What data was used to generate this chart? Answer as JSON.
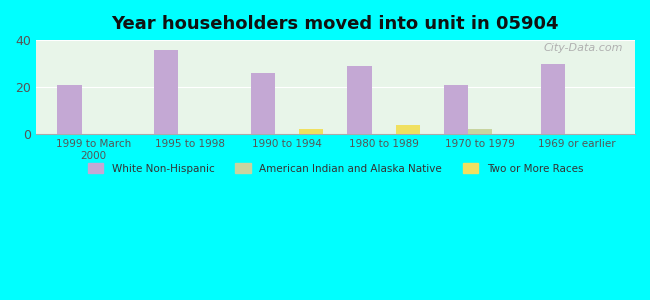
{
  "title": "Year householders moved into unit in 05904",
  "background_color": "#00FFFF",
  "plot_bg_top": "#e8f5e9",
  "plot_bg_bottom": "#f0f9f0",
  "categories": [
    "1999 to March\n2000",
    "1995 to 1998",
    "1990 to 1994",
    "1980 to 1989",
    "1970 to 1979",
    "1969 or earlier"
  ],
  "white_non_hispanic": [
    21,
    36,
    26,
    29,
    21,
    30
  ],
  "american_indian": [
    0,
    0,
    0,
    0,
    2,
    0
  ],
  "two_or_more": [
    0,
    0,
    2,
    4,
    0,
    0
  ],
  "bar_color_white": "#c4a8d4",
  "bar_color_indian": "#c8d4a0",
  "bar_color_two": "#f0e060",
  "ylim": [
    0,
    40
  ],
  "yticks": [
    0,
    20,
    40
  ],
  "bar_width": 0.25,
  "watermark": "City-Data.com",
  "legend_entries": [
    "White Non-Hispanic",
    "American Indian and Alaska Native",
    "Two or More Races"
  ],
  "legend_colors": [
    "#c4a8d4",
    "#c8d4a0",
    "#f0e060"
  ]
}
